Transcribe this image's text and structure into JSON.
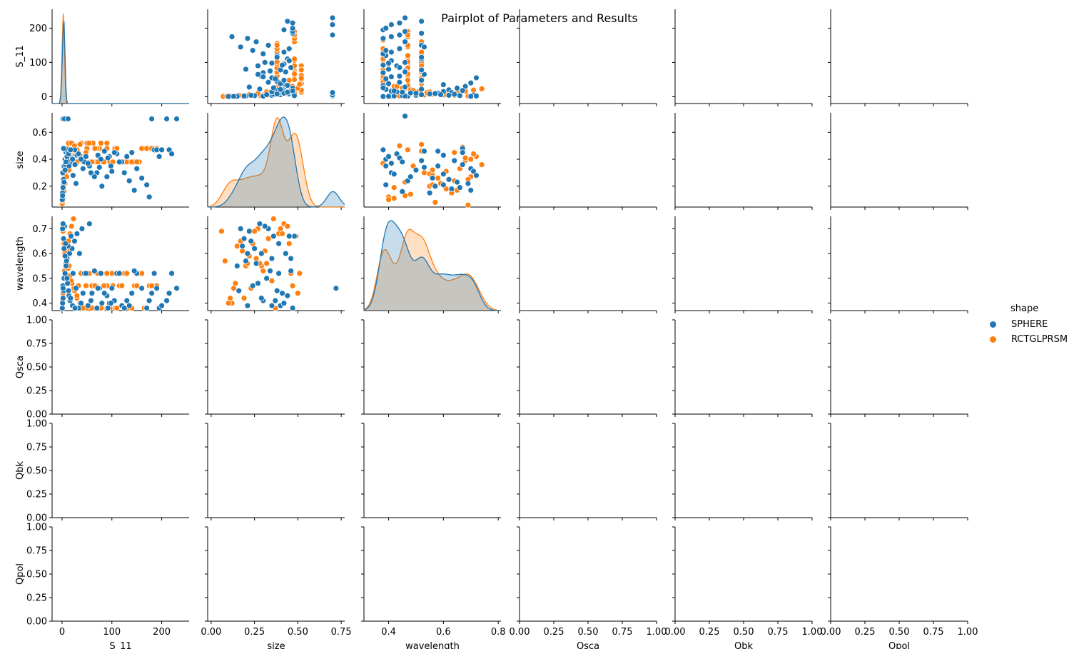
{
  "chart_data": {
    "type": "scatter",
    "title": "Pairplot of Parameters and Results",
    "variables": [
      "S_11",
      "size",
      "wavelength",
      "Qsca",
      "Qbk",
      "Qpol"
    ],
    "hue": {
      "title": "shape",
      "levels": [
        {
          "name": "SPHERE",
          "color": "#1f77b4"
        },
        {
          "name": "RCTGLPRSM",
          "color": "#ff7f0e"
        }
      ]
    },
    "axes": {
      "S_11": {
        "range": [
          -20,
          255
        ],
        "ticks": [
          0,
          100,
          200
        ],
        "tick_labels": [
          "0",
          "100",
          "200"
        ],
        "label": "S_11"
      },
      "S_11_x": {
        "ticks": [
          0,
          100,
          200
        ],
        "tick_labels": [
          "0",
          "100",
          "200"
        ]
      },
      "size": {
        "range": [
          0.045,
          0.745
        ],
        "ticks": [
          0.2,
          0.4,
          0.6
        ],
        "tick_labels": [
          "0.2",
          "0.4",
          "0.6"
        ],
        "label": "size"
      },
      "size_x": {
        "ticks": [
          0.0,
          0.25,
          0.5,
          0.75
        ],
        "tick_labels": [
          "0.00",
          "0.25",
          "0.50",
          "0.75"
        ],
        "range": [
          -0.02,
          0.77
        ]
      },
      "wavelength": {
        "range": [
          0.37,
          0.75
        ],
        "ticks": [
          0.4,
          0.5,
          0.6,
          0.7
        ],
        "tick_labels": [
          "0.4",
          "0.5",
          "0.6",
          "0.7"
        ],
        "label": "wavelength"
      },
      "wavelength_x": {
        "ticks": [
          0.4,
          0.6,
          0.8
        ],
        "tick_labels": [
          "0.4",
          "0.6",
          "0.8"
        ],
        "range": [
          0.31,
          0.81
        ]
      },
      "empty": {
        "range": [
          0,
          1
        ],
        "ticks": [
          0,
          0.25,
          0.5,
          0.75,
          1
        ],
        "tick_labels": [
          "0.00",
          "0.25",
          "0.50",
          "0.75",
          "1.00"
        ]
      }
    },
    "series": [
      {
        "name": "SPHERE",
        "S_11": [
          0.5,
          1,
          2,
          3,
          1.5,
          4,
          6,
          8,
          10,
          15,
          20,
          25,
          30,
          40,
          55,
          70,
          80,
          90,
          100,
          110,
          120,
          130,
          140,
          150,
          160,
          170,
          175,
          180,
          185,
          190,
          195,
          200,
          210,
          215,
          220,
          230,
          2,
          5,
          12,
          18,
          35,
          45,
          60,
          75,
          95,
          105,
          115,
          125,
          135,
          145,
          3,
          7,
          9,
          11,
          14,
          16,
          22,
          28,
          33,
          38,
          42,
          48,
          52,
          58,
          65,
          72,
          78,
          85,
          92,
          98,
          1,
          2,
          4,
          6,
          8,
          10,
          13,
          17,
          21,
          26
        ],
        "size": [
          0.1,
          0.15,
          0.2,
          0.25,
          0.3,
          0.35,
          0.4,
          0.45,
          0.47,
          0.42,
          0.38,
          0.47,
          0.43,
          0.4,
          0.35,
          0.3,
          0.2,
          0.27,
          0.31,
          0.44,
          0.38,
          0.42,
          0.45,
          0.33,
          0.26,
          0.21,
          0.12,
          0.7,
          0.47,
          0.47,
          0.42,
          0.47,
          0.7,
          0.47,
          0.44,
          0.7,
          0.7,
          0.7,
          0.7,
          0.41,
          0.43,
          0.38,
          0.29,
          0.34,
          0.42,
          0.45,
          0.38,
          0.3,
          0.24,
          0.17,
          0.48,
          0.36,
          0.42,
          0.39,
          0.35,
          0.46,
          0.28,
          0.22,
          0.44,
          0.4,
          0.33,
          0.42,
          0.37,
          0.3,
          0.27,
          0.43,
          0.4,
          0.46,
          0.41,
          0.35,
          0.13,
          0.19,
          0.23,
          0.32,
          0.38,
          0.42,
          0.44,
          0.47,
          0.4,
          0.36
        ],
        "wavelength": [
          0.38,
          0.4,
          0.42,
          0.45,
          0.47,
          0.5,
          0.52,
          0.55,
          0.58,
          0.6,
          0.62,
          0.65,
          0.68,
          0.7,
          0.72,
          0.38,
          0.4,
          0.43,
          0.46,
          0.52,
          0.39,
          0.41,
          0.44,
          0.52,
          0.46,
          0.38,
          0.41,
          0.44,
          0.52,
          0.46,
          0.38,
          0.39,
          0.41,
          0.44,
          0.52,
          0.46,
          0.46,
          0.71,
          0.63,
          0.67,
          0.6,
          0.52,
          0.44,
          0.46,
          0.4,
          0.41,
          0.52,
          0.38,
          0.39,
          0.53,
          0.66,
          0.64,
          0.57,
          0.48,
          0.43,
          0.41,
          0.52,
          0.46,
          0.38,
          0.4,
          0.44,
          0.52,
          0.39,
          0.41,
          0.53,
          0.46,
          0.52,
          0.44,
          0.38,
          0.4,
          0.7,
          0.72,
          0.62,
          0.59,
          0.55,
          0.5,
          0.45,
          0.42,
          0.39,
          0.38
        ]
      },
      {
        "name": "RCTGLPRSM",
        "S_11": [
          0.5,
          1,
          2,
          3,
          4,
          5,
          7,
          9,
          11,
          13,
          16,
          19,
          23,
          28,
          33,
          38,
          44,
          50,
          56,
          62,
          68,
          75,
          82,
          90,
          98,
          106,
          115,
          125,
          135,
          145,
          155,
          165,
          175,
          185,
          190,
          1,
          2,
          3,
          5,
          8,
          12,
          15,
          20,
          25,
          30,
          40,
          50,
          60,
          70,
          80,
          90,
          100,
          110,
          120,
          130,
          140,
          150,
          160,
          170,
          180,
          2,
          4,
          6,
          9,
          14,
          18,
          24,
          30,
          36,
          42,
          48,
          54,
          60,
          66,
          72,
          78,
          84,
          90,
          96,
          102
        ],
        "size": [
          0.07,
          0.12,
          0.18,
          0.23,
          0.28,
          0.33,
          0.38,
          0.43,
          0.48,
          0.52,
          0.38,
          0.52,
          0.48,
          0.38,
          0.45,
          0.52,
          0.38,
          0.48,
          0.38,
          0.52,
          0.38,
          0.48,
          0.38,
          0.52,
          0.38,
          0.48,
          0.38,
          0.38,
          0.38,
          0.38,
          0.38,
          0.48,
          0.48,
          0.48,
          0.48,
          0.09,
          0.13,
          0.2,
          0.26,
          0.31,
          0.36,
          0.41,
          0.46,
          0.5,
          0.38,
          0.42,
          0.52,
          0.38,
          0.48,
          0.38,
          0.52,
          0.38,
          0.48,
          0.38,
          0.38,
          0.38,
          0.38,
          0.48,
          0.48,
          0.48,
          0.11,
          0.16,
          0.22,
          0.27,
          0.32,
          0.37,
          0.42,
          0.47,
          0.51,
          0.38,
          0.45,
          0.52,
          0.38,
          0.48,
          0.38,
          0.52,
          0.38,
          0.48,
          0.38,
          0.38
        ],
        "wavelength": [
          0.38,
          0.41,
          0.44,
          0.47,
          0.5,
          0.53,
          0.56,
          0.59,
          0.62,
          0.65,
          0.68,
          0.71,
          0.74,
          0.38,
          0.47,
          0.52,
          0.38,
          0.47,
          0.52,
          0.38,
          0.47,
          0.52,
          0.38,
          0.47,
          0.52,
          0.38,
          0.47,
          0.52,
          0.38,
          0.47,
          0.52,
          0.38,
          0.47,
          0.52,
          0.47,
          0.72,
          0.69,
          0.66,
          0.6,
          0.57,
          0.54,
          0.51,
          0.48,
          0.45,
          0.42,
          0.39,
          0.38,
          0.47,
          0.52,
          0.38,
          0.47,
          0.52,
          0.38,
          0.47,
          0.52,
          0.38,
          0.47,
          0.52,
          0.38,
          0.47,
          0.7,
          0.64,
          0.61,
          0.58,
          0.55,
          0.49,
          0.46,
          0.43,
          0.4,
          0.38,
          0.47,
          0.52,
          0.38,
          0.47,
          0.52,
          0.38,
          0.47,
          0.52,
          0.38,
          0.47
        ]
      }
    ],
    "extra_size_wavelength": {
      "SPHERE": {
        "size": [
          0.46,
          0.72,
          0.15,
          0.24,
          0.39,
          0.18,
          0.29,
          0.33,
          0.21,
          0.44,
          0.36,
          0.27,
          0.41,
          0.31,
          0.19,
          0.47,
          0.25,
          0.35,
          0.43,
          0.16,
          0.38,
          0.22,
          0.3,
          0.48,
          0.26,
          0.34,
          0.4,
          0.2,
          0.45,
          0.28,
          0.37,
          0.32,
          0.42,
          0.23,
          0.17,
          0.39,
          0.29,
          0.46,
          0.35,
          0.21
        ],
        "wavelength": [
          0.58,
          0.46,
          0.55,
          0.47,
          0.52,
          0.63,
          0.6,
          0.7,
          0.39,
          0.43,
          0.67,
          0.48,
          0.44,
          0.71,
          0.66,
          0.38,
          0.62,
          0.58,
          0.6,
          0.45,
          0.45,
          0.69,
          0.41,
          0.67,
          0.56,
          0.53,
          0.39,
          0.57,
          0.67,
          0.72,
          0.41,
          0.5,
          0.4,
          0.65,
          0.7,
          0.64,
          0.42,
          0.53,
          0.39,
          0.6
        ]
      },
      "RCTGLPRSM": {
        "size": [
          0.06,
          0.11,
          0.17,
          0.22,
          0.27,
          0.32,
          0.37,
          0.42,
          0.47,
          0.51,
          0.08,
          0.14,
          0.2,
          0.25,
          0.3,
          0.35,
          0.4,
          0.45,
          0.5,
          0.12,
          0.18,
          0.24,
          0.29,
          0.34,
          0.39,
          0.44,
          0.49,
          0.1,
          0.15,
          0.21,
          0.26,
          0.31,
          0.36,
          0.41,
          0.46,
          0.13,
          0.19,
          0.23,
          0.28,
          0.33
        ],
        "wavelength": [
          0.69,
          0.42,
          0.65,
          0.59,
          0.7,
          0.56,
          0.38,
          0.72,
          0.47,
          0.52,
          0.57,
          0.48,
          0.55,
          0.69,
          0.53,
          0.49,
          0.7,
          0.64,
          0.44,
          0.4,
          0.61,
          0.64,
          0.55,
          0.53,
          0.68,
          0.71,
          0.67,
          0.4,
          0.63,
          0.56,
          0.58,
          0.61,
          0.74,
          0.68,
          0.52,
          0.46,
          0.42,
          0.46,
          0.56,
          0.66
        ]
      },
      "SPHERE_s11": {
        "S_11": [
          5,
          20,
          50,
          100,
          15,
          10,
          30,
          12,
          8,
          25,
          40,
          60,
          35,
          80,
          45,
          22,
          28,
          50,
          120,
          55,
          40,
          18,
          30,
          10,
          5,
          35,
          60,
          20,
          70,
          25
        ],
        "wavelength_x": [
          0.72,
          0.68,
          0.66,
          0.62,
          0.6,
          0.64,
          0.58,
          0.56,
          0.54,
          0.55,
          0.5,
          0.48,
          0.46,
          0.62,
          0.44,
          0.42,
          0.4,
          0.39,
          0.41,
          0.53,
          0.59,
          0.67,
          0.7,
          0.43,
          0.45,
          0.47,
          0.51,
          0.52,
          0.57,
          0.61
        ]
      }
    }
  }
}
